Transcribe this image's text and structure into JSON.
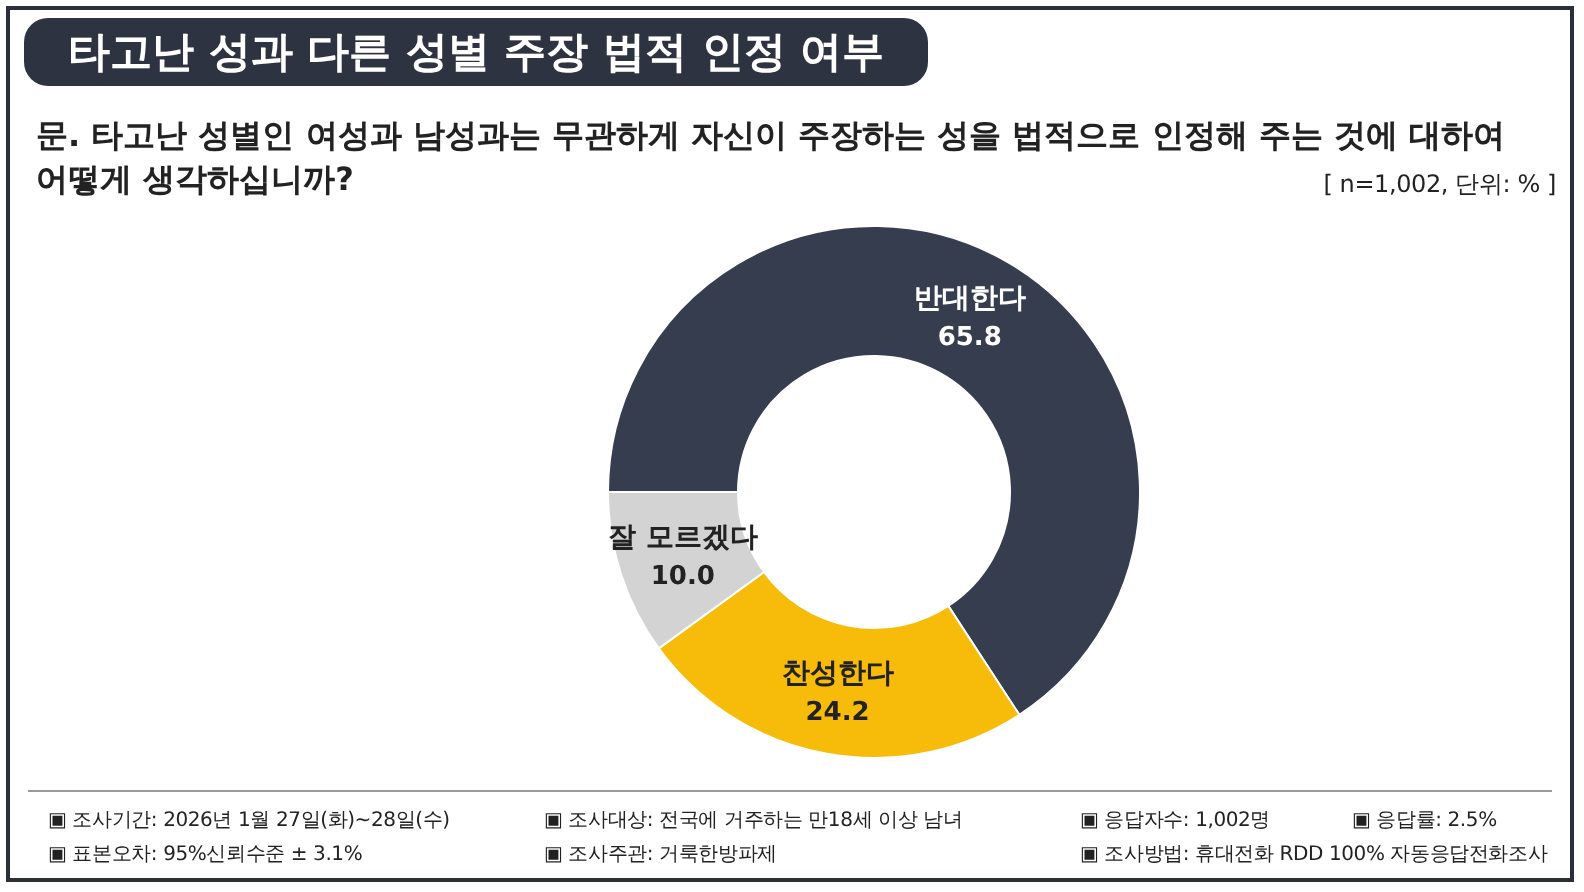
{
  "chart_data": {
    "type": "donut",
    "title": "타고난 성과 다른 성별 주장 법적 인정 여부",
    "subtitle": "문. 타고난 성별인 여성과 남성과는 무관하게 자신이 주장하는 성을 법적으로 인정해 주는 것에 대하여 어떻게 생각하십니까?",
    "categories": [
      "반대한다",
      "찬성한다",
      "잘 모르겠다"
    ],
    "values": [
      65.8,
      24.2,
      10.0
    ],
    "value_labels": [
      "65.8",
      "24.2",
      "10.0"
    ],
    "colors": [
      "#363d4e",
      "#f7bb09",
      "#d3d3d3"
    ],
    "legend": false,
    "annotations": [
      "[ n=1,002, 단위: % ]",
      "▣ 조사기간: 2026년 1월 27일(화)~28일(수)",
      "▣ 조사대상: 전국에 거주하는 만18세 이상 남녀",
      "▣ 응답자수: 1,002명",
      "▣ 응답률: 2.5%",
      "▣ 표본오차: 95%신뢰수준 ± 3.1%",
      "▣ 조사주관: 거룩한방파제",
      "▣ 조사방법: 휴대전화 RDD 100% 자동응답전화조사"
    ]
  }
}
